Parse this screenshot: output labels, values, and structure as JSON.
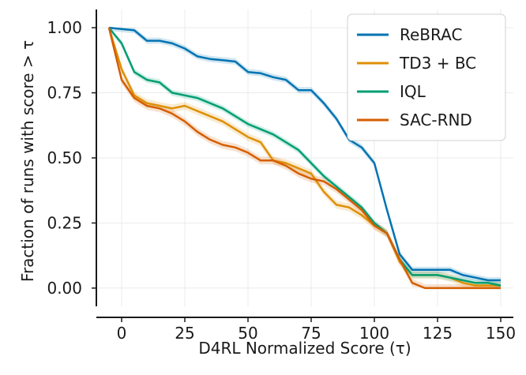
{
  "chart_data": {
    "type": "line",
    "title": "",
    "xlabel": "D4RL Normalized Score (τ)",
    "ylabel": "Fraction of runs with score > τ",
    "xlim": [
      -10,
      155
    ],
    "ylim": [
      -0.07,
      1.07
    ],
    "xticks": [
      0,
      25,
      50,
      75,
      100,
      125,
      150
    ],
    "yticks": [
      0.0,
      0.25,
      0.5,
      0.75,
      1.0
    ],
    "xtick_labels": [
      "0",
      "25",
      "50",
      "75",
      "100",
      "125",
      "150"
    ],
    "ytick_labels": [
      "0.00",
      "0.25",
      "0.50",
      "0.75",
      "1.00"
    ],
    "grid": true,
    "legend_position": "top-right",
    "series": [
      {
        "name": "ReBRAC",
        "color": "#0173b2",
        "band": 0.012,
        "x": [
          -5,
          0,
          5,
          10,
          15,
          20,
          25,
          30,
          35,
          40,
          45,
          50,
          55,
          60,
          65,
          70,
          75,
          80,
          85,
          90,
          95,
          100,
          105,
          110,
          115,
          120,
          125,
          130,
          135,
          140,
          145,
          150
        ],
        "y": [
          1.0,
          0.995,
          0.99,
          0.95,
          0.95,
          0.94,
          0.92,
          0.89,
          0.88,
          0.875,
          0.87,
          0.83,
          0.825,
          0.81,
          0.8,
          0.76,
          0.76,
          0.71,
          0.65,
          0.57,
          0.54,
          0.48,
          0.3,
          0.13,
          0.07,
          0.07,
          0.07,
          0.07,
          0.05,
          0.04,
          0.03,
          0.03
        ]
      },
      {
        "name": "TD3 + BC",
        "color": "#de8f05",
        "band": 0.015,
        "x": [
          -5,
          0,
          5,
          10,
          15,
          20,
          25,
          30,
          35,
          40,
          45,
          50,
          55,
          60,
          65,
          70,
          75,
          80,
          85,
          90,
          95,
          100,
          105,
          110,
          115,
          120,
          125,
          130,
          135,
          140,
          145,
          150
        ],
        "y": [
          1.0,
          0.84,
          0.74,
          0.71,
          0.7,
          0.69,
          0.7,
          0.68,
          0.66,
          0.64,
          0.61,
          0.58,
          0.56,
          0.49,
          0.48,
          0.46,
          0.44,
          0.37,
          0.32,
          0.31,
          0.28,
          0.24,
          0.21,
          0.1,
          0.05,
          0.05,
          0.05,
          0.04,
          0.02,
          0.01,
          0.01,
          0.01
        ]
      },
      {
        "name": "IQL",
        "color": "#029e73",
        "band": 0.012,
        "x": [
          -5,
          0,
          5,
          10,
          15,
          20,
          25,
          30,
          35,
          40,
          45,
          50,
          55,
          60,
          65,
          70,
          75,
          80,
          85,
          90,
          95,
          100,
          105,
          110,
          115,
          120,
          125,
          130,
          135,
          140,
          145,
          150
        ],
        "y": [
          1.0,
          0.94,
          0.83,
          0.8,
          0.79,
          0.75,
          0.74,
          0.73,
          0.71,
          0.69,
          0.66,
          0.63,
          0.61,
          0.59,
          0.56,
          0.53,
          0.48,
          0.43,
          0.39,
          0.35,
          0.31,
          0.25,
          0.21,
          0.11,
          0.05,
          0.05,
          0.05,
          0.04,
          0.03,
          0.02,
          0.02,
          0.01
        ]
      },
      {
        "name": "SAC-RND",
        "color": "#d55e00",
        "band": 0.015,
        "x": [
          -5,
          0,
          5,
          10,
          15,
          20,
          25,
          30,
          35,
          40,
          45,
          50,
          55,
          60,
          65,
          70,
          75,
          80,
          85,
          90,
          95,
          100,
          105,
          110,
          115,
          120,
          125,
          130,
          135,
          140,
          145,
          150
        ],
        "y": [
          1.0,
          0.8,
          0.73,
          0.7,
          0.69,
          0.67,
          0.64,
          0.6,
          0.57,
          0.55,
          0.54,
          0.52,
          0.49,
          0.49,
          0.47,
          0.44,
          0.42,
          0.41,
          0.38,
          0.34,
          0.3,
          0.24,
          0.21,
          0.11,
          0.02,
          0.0,
          0.0,
          0.0,
          0.0,
          0.0,
          0.0,
          0.0
        ]
      }
    ]
  }
}
